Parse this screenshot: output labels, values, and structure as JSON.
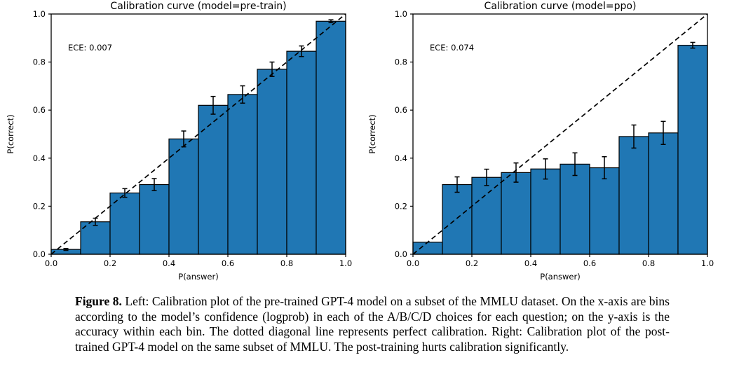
{
  "caption": {
    "label": "Figure 8.",
    "text": " Left: Calibration plot of the pre-trained GPT-4 model on a subset of the MMLU dataset. On the x-axis are bins according to the model’s confidence (logprob) in each of the A/B/C/D choices for each question; on the y-axis is the accuracy within each bin. The dotted diagonal line represents perfect calibration. Right: Calibration plot of the post-trained GPT-4 model on the same subset of MMLU. The post-training hurts calibration significantly."
  },
  "chart_data": [
    {
      "type": "bar",
      "id": "pretrain",
      "title": "Calibration curve (model=pre-train)",
      "annotation": "ECE: 0.007",
      "xlabel": "P(answer)",
      "ylabel": "P(correct)",
      "xlim": [
        0.0,
        1.0
      ],
      "ylim": [
        0.0,
        1.0
      ],
      "xticks": [
        "0.0",
        "0.2",
        "0.4",
        "0.6",
        "0.8",
        "1.0"
      ],
      "yticks": [
        "0.0",
        "0.2",
        "0.4",
        "0.6",
        "0.8",
        "1.0"
      ],
      "grid": false,
      "legend": null,
      "diagonal_line": true,
      "bar_color": "#2077b4",
      "bar_edge_color": "#000000",
      "bin_edges": [
        0.0,
        0.1,
        0.2,
        0.3,
        0.4,
        0.5,
        0.6,
        0.7,
        0.8,
        0.9,
        1.0
      ],
      "bin_centers": [
        0.05,
        0.15,
        0.25,
        0.35,
        0.45,
        0.55,
        0.65,
        0.75,
        0.85,
        0.95
      ],
      "values": [
        0.02,
        0.135,
        0.255,
        0.29,
        0.48,
        0.62,
        0.665,
        0.77,
        0.845,
        0.97
      ],
      "errors": [
        0.004,
        0.015,
        0.018,
        0.025,
        0.033,
        0.037,
        0.036,
        0.03,
        0.022,
        0.006
      ]
    },
    {
      "type": "bar",
      "id": "ppo",
      "title": "Calibration curve (model=ppo)",
      "annotation": "ECE: 0.074",
      "xlabel": "P(answer)",
      "ylabel": "P(correct)",
      "xlim": [
        0.0,
        1.0
      ],
      "ylim": [
        0.0,
        1.0
      ],
      "xticks": [
        "0.0",
        "0.2",
        "0.4",
        "0.6",
        "0.8",
        "1.0"
      ],
      "yticks": [
        "0.0",
        "0.2",
        "0.4",
        "0.6",
        "0.8",
        "1.0"
      ],
      "grid": false,
      "legend": null,
      "diagonal_line": true,
      "bar_color": "#2077b4",
      "bar_edge_color": "#000000",
      "bin_edges": [
        0.0,
        0.1,
        0.2,
        0.3,
        0.4,
        0.5,
        0.6,
        0.7,
        0.8,
        0.9,
        1.0
      ],
      "bin_centers": [
        0.05,
        0.15,
        0.25,
        0.35,
        0.45,
        0.55,
        0.65,
        0.75,
        0.85,
        0.95
      ],
      "values": [
        0.05,
        0.29,
        0.32,
        0.34,
        0.355,
        0.375,
        0.36,
        0.49,
        0.505,
        0.87
      ],
      "errors": [
        0,
        0.032,
        0.034,
        0.04,
        0.042,
        0.047,
        0.046,
        0.048,
        0.048,
        0.012
      ]
    }
  ]
}
